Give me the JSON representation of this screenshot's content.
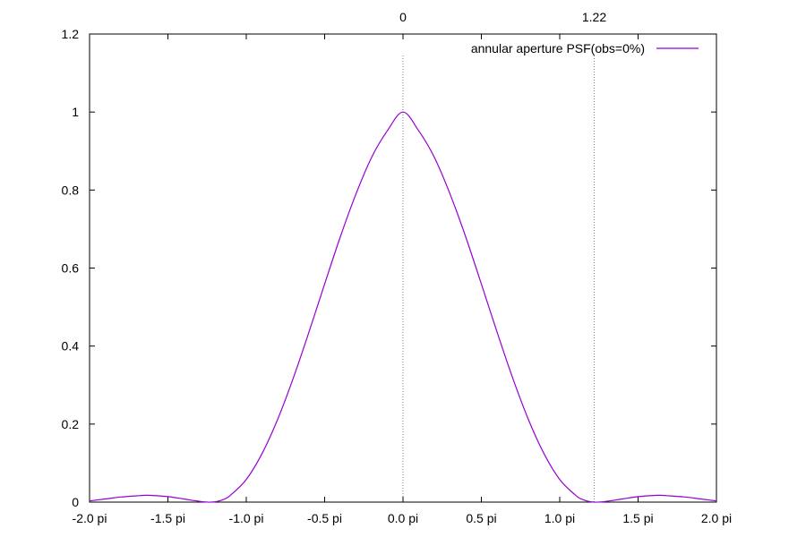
{
  "chart_data": {
    "type": "line",
    "title": "",
    "xlabel": "",
    "ylabel": "",
    "xlim": [
      -2.0,
      2.0
    ],
    "ylim": [
      0,
      1.2
    ],
    "x_unit": "pi",
    "x_ticks": [
      {
        "value": -2.0,
        "label": "-2.0 pi"
      },
      {
        "value": -1.5,
        "label": "-1.5 pi"
      },
      {
        "value": -1.0,
        "label": "-1.0 pi"
      },
      {
        "value": -0.5,
        "label": "-0.5 pi"
      },
      {
        "value": 0.0,
        "label": "0.0 pi"
      },
      {
        "value": 0.5,
        "label": "0.5 pi"
      },
      {
        "value": 1.0,
        "label": "1.0 pi"
      },
      {
        "value": 1.5,
        "label": "1.5 pi"
      },
      {
        "value": 2.0,
        "label": "2.0 pi"
      }
    ],
    "y_ticks": [
      {
        "value": 0,
        "label": "0"
      },
      {
        "value": 0.2,
        "label": "0.2"
      },
      {
        "value": 0.4,
        "label": "0.4"
      },
      {
        "value": 0.6,
        "label": "0.6"
      },
      {
        "value": 0.8,
        "label": "0.8"
      },
      {
        "value": 1.0,
        "label": "1"
      },
      {
        "value": 1.2,
        "label": "1.2"
      }
    ],
    "x2_ticks": [
      {
        "value": 0.0,
        "label": "0"
      },
      {
        "value": 1.22,
        "label": "1.22"
      }
    ],
    "grid": false,
    "legend_position": "top-right",
    "series": [
      {
        "name": "annular aperture PSF(obs=0%)",
        "color": "#9400d3",
        "x": [
          -2.0,
          -1.9,
          -1.8,
          -1.7,
          -1.64,
          -1.6,
          -1.5,
          -1.4,
          -1.3,
          -1.22,
          -1.15,
          -1.1,
          -1.0,
          -0.9,
          -0.8,
          -0.7,
          -0.6,
          -0.5,
          -0.4,
          -0.3,
          -0.2,
          -0.1,
          0.0,
          0.1,
          0.2,
          0.3,
          0.4,
          0.5,
          0.6,
          0.7,
          0.8,
          0.9,
          1.0,
          1.1,
          1.15,
          1.22,
          1.3,
          1.4,
          1.5,
          1.6,
          1.64,
          1.7,
          1.8,
          1.9,
          2.0
        ],
        "y": [
          0.003,
          0.008,
          0.013,
          0.016,
          0.0175,
          0.017,
          0.014,
          0.008,
          0.002,
          0.0,
          0.006,
          0.018,
          0.058,
          0.124,
          0.212,
          0.318,
          0.436,
          0.559,
          0.68,
          0.79,
          0.884,
          0.952,
          1.0,
          0.952,
          0.884,
          0.79,
          0.68,
          0.559,
          0.436,
          0.318,
          0.212,
          0.124,
          0.058,
          0.018,
          0.006,
          0.0,
          0.002,
          0.008,
          0.014,
          0.017,
          0.0175,
          0.016,
          0.013,
          0.008,
          0.003
        ]
      }
    ]
  }
}
